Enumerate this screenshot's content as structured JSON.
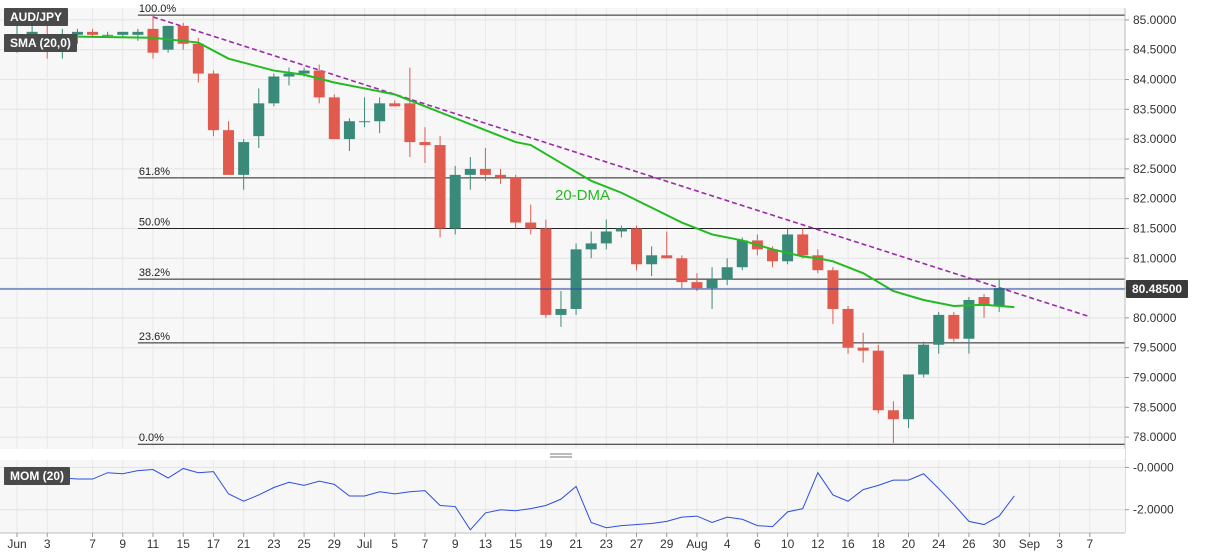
{
  "chart_data": [
    {
      "type": "candlestick",
      "symbol_label": "AUD/JPY",
      "indicator_label": "SMA (20,0)",
      "ma_annotation": "20-DMA",
      "current_price_label": "80.48500",
      "current_price": 80.485,
      "ylim": [
        77.8,
        85.2
      ],
      "y_ticks": [
        "85.0000",
        "84.5000",
        "84.0000",
        "83.5000",
        "83.0000",
        "82.5000",
        "82.0000",
        "81.5000",
        "81.0000",
        "80.5000",
        "80.0000",
        "79.5000",
        "79.0000",
        "78.5000",
        "78.0000"
      ],
      "y_tick_values": [
        85.0,
        84.5,
        84.0,
        83.5,
        83.0,
        82.5,
        82.0,
        81.5,
        81.0,
        80.5,
        80.0,
        79.5,
        79.0,
        78.5,
        78.0
      ],
      "x_ticks": [
        "Jun",
        "3",
        "7",
        "9",
        "11",
        "15",
        "17",
        "21",
        "23",
        "25",
        "29",
        "Jul",
        "5",
        "7",
        "9",
        "13",
        "15",
        "19",
        "21",
        "23",
        "27",
        "29",
        "Aug",
        "4",
        "6",
        "10",
        "12",
        "16",
        "18",
        "20",
        "24",
        "26",
        "30",
        "Sep",
        "3",
        "7"
      ],
      "x_tick_slots": [
        0,
        2,
        5,
        7,
        9,
        11,
        13,
        15,
        17,
        19,
        21,
        23,
        25,
        27,
        29,
        31,
        33,
        35,
        37,
        39,
        41,
        43,
        45,
        47,
        49,
        51,
        53,
        55,
        57,
        59,
        61,
        63,
        65,
        67,
        69,
        71
      ],
      "fibonacci": [
        {
          "label": "100.0%",
          "value": 85.08
        },
        {
          "label": "61.8%",
          "value": 82.35
        },
        {
          "label": "50.0%",
          "value": 81.5
        },
        {
          "label": "38.2%",
          "value": 80.65
        },
        {
          "label": "23.6%",
          "value": 79.58
        },
        {
          "label": "0.0%",
          "value": 77.88
        }
      ],
      "trendline": {
        "from": {
          "slot": 9,
          "value": 85.05
        },
        "to": {
          "slot": 71,
          "value": 80.02
        }
      },
      "bull_color": "#3a8a79",
      "bear_color": "#e05a4e",
      "ma_color": "#22bb22",
      "trend_color": "#9b2ba8",
      "candles": [
        {
          "slot": 0,
          "o": 84.55,
          "h": 84.9,
          "l": 84.45,
          "c": 84.75
        },
        {
          "slot": 1,
          "o": 84.75,
          "h": 84.9,
          "l": 84.6,
          "c": 84.8
        },
        {
          "slot": 2,
          "o": 84.75,
          "h": 84.9,
          "l": 84.35,
          "c": 84.55
        },
        {
          "slot": 3,
          "o": 84.55,
          "h": 84.85,
          "l": 84.35,
          "c": 84.75
        },
        {
          "slot": 4,
          "o": 84.75,
          "h": 84.85,
          "l": 84.6,
          "c": 84.8
        },
        {
          "slot": 5,
          "o": 84.8,
          "h": 84.85,
          "l": 84.7,
          "c": 84.75
        },
        {
          "slot": 6,
          "o": 84.75,
          "h": 84.8,
          "l": 84.7,
          "c": 84.75
        },
        {
          "slot": 7,
          "o": 84.75,
          "h": 84.8,
          "l": 84.7,
          "c": 84.8
        },
        {
          "slot": 8,
          "o": 84.75,
          "h": 84.85,
          "l": 84.65,
          "c": 84.8
        },
        {
          "slot": 9,
          "o": 84.85,
          "h": 85.08,
          "l": 84.35,
          "c": 84.45
        },
        {
          "slot": 10,
          "o": 84.5,
          "h": 84.9,
          "l": 84.45,
          "c": 84.9
        },
        {
          "slot": 11,
          "o": 84.9,
          "h": 84.95,
          "l": 84.5,
          "c": 84.6
        },
        {
          "slot": 12,
          "o": 84.6,
          "h": 84.7,
          "l": 83.95,
          "c": 84.1
        },
        {
          "slot": 13,
          "o": 84.1,
          "h": 84.15,
          "l": 83.05,
          "c": 83.15
        },
        {
          "slot": 14,
          "o": 83.15,
          "h": 83.3,
          "l": 82.4,
          "c": 82.4
        },
        {
          "slot": 15,
          "o": 82.4,
          "h": 83.0,
          "l": 82.15,
          "c": 82.95
        },
        {
          "slot": 16,
          "o": 83.05,
          "h": 83.85,
          "l": 82.85,
          "c": 83.6
        },
        {
          "slot": 17,
          "o": 83.6,
          "h": 84.1,
          "l": 83.55,
          "c": 84.05
        },
        {
          "slot": 18,
          "o": 84.05,
          "h": 84.2,
          "l": 83.9,
          "c": 84.1
        },
        {
          "slot": 19,
          "o": 84.1,
          "h": 84.2,
          "l": 84.05,
          "c": 84.15
        },
        {
          "slot": 20,
          "o": 84.15,
          "h": 84.25,
          "l": 83.6,
          "c": 83.7
        },
        {
          "slot": 21,
          "o": 83.7,
          "h": 83.75,
          "l": 83.0,
          "c": 83.0
        },
        {
          "slot": 22,
          "o": 83.0,
          "h": 83.35,
          "l": 82.8,
          "c": 83.3
        },
        {
          "slot": 23,
          "o": 83.3,
          "h": 83.7,
          "l": 83.2,
          "c": 83.3
        },
        {
          "slot": 24,
          "o": 83.3,
          "h": 83.7,
          "l": 83.1,
          "c": 83.6
        },
        {
          "slot": 25,
          "o": 83.6,
          "h": 83.65,
          "l": 83.55,
          "c": 83.55
        },
        {
          "slot": 26,
          "o": 83.6,
          "h": 84.2,
          "l": 82.7,
          "c": 82.95
        },
        {
          "slot": 27,
          "o": 82.95,
          "h": 83.2,
          "l": 82.6,
          "c": 82.9
        },
        {
          "slot": 28,
          "o": 82.9,
          "h": 83.05,
          "l": 81.35,
          "c": 81.5
        },
        {
          "slot": 29,
          "o": 81.5,
          "h": 82.55,
          "l": 81.4,
          "c": 82.4
        },
        {
          "slot": 30,
          "o": 82.4,
          "h": 82.7,
          "l": 82.15,
          "c": 82.5
        },
        {
          "slot": 31,
          "o": 82.5,
          "h": 82.85,
          "l": 82.3,
          "c": 82.4
        },
        {
          "slot": 32,
          "o": 82.4,
          "h": 82.5,
          "l": 82.25,
          "c": 82.35
        },
        {
          "slot": 33,
          "o": 82.35,
          "h": 82.4,
          "l": 81.5,
          "c": 81.6
        },
        {
          "slot": 34,
          "o": 81.6,
          "h": 81.9,
          "l": 81.4,
          "c": 81.5
        },
        {
          "slot": 35,
          "o": 81.5,
          "h": 81.65,
          "l": 80.0,
          "c": 80.05
        },
        {
          "slot": 36,
          "o": 80.05,
          "h": 80.45,
          "l": 79.85,
          "c": 80.15
        },
        {
          "slot": 37,
          "o": 80.15,
          "h": 81.25,
          "l": 80.05,
          "c": 81.15
        },
        {
          "slot": 38,
          "o": 81.15,
          "h": 81.45,
          "l": 81.0,
          "c": 81.25
        },
        {
          "slot": 39,
          "o": 81.25,
          "h": 81.65,
          "l": 81.15,
          "c": 81.45
        },
        {
          "slot": 40,
          "o": 81.45,
          "h": 81.55,
          "l": 81.35,
          "c": 81.5
        },
        {
          "slot": 41,
          "o": 81.5,
          "h": 81.55,
          "l": 80.8,
          "c": 80.9
        },
        {
          "slot": 42,
          "o": 80.9,
          "h": 81.2,
          "l": 80.7,
          "c": 81.05
        },
        {
          "slot": 43,
          "o": 81.05,
          "h": 81.45,
          "l": 81.0,
          "c": 81.0
        },
        {
          "slot": 44,
          "o": 81.0,
          "h": 81.05,
          "l": 80.5,
          "c": 80.6
        },
        {
          "slot": 45,
          "o": 80.6,
          "h": 80.75,
          "l": 80.45,
          "c": 80.5
        },
        {
          "slot": 46,
          "o": 80.5,
          "h": 80.85,
          "l": 80.15,
          "c": 80.65
        },
        {
          "slot": 47,
          "o": 80.65,
          "h": 81.0,
          "l": 80.55,
          "c": 80.85
        },
        {
          "slot": 48,
          "o": 80.85,
          "h": 81.35,
          "l": 80.8,
          "c": 81.3
        },
        {
          "slot": 49,
          "o": 81.3,
          "h": 81.4,
          "l": 81.05,
          "c": 81.15
        },
        {
          "slot": 50,
          "o": 81.15,
          "h": 81.2,
          "l": 80.85,
          "c": 80.95
        },
        {
          "slot": 51,
          "o": 80.95,
          "h": 81.5,
          "l": 80.9,
          "c": 81.4
        },
        {
          "slot": 52,
          "o": 81.4,
          "h": 81.5,
          "l": 81.0,
          "c": 81.05
        },
        {
          "slot": 53,
          "o": 81.05,
          "h": 81.15,
          "l": 80.75,
          "c": 80.8
        },
        {
          "slot": 54,
          "o": 80.8,
          "h": 80.85,
          "l": 79.9,
          "c": 80.15
        },
        {
          "slot": 55,
          "o": 80.15,
          "h": 80.2,
          "l": 79.4,
          "c": 79.5
        },
        {
          "slot": 56,
          "o": 79.5,
          "h": 79.75,
          "l": 79.25,
          "c": 79.45
        },
        {
          "slot": 57,
          "o": 79.45,
          "h": 79.55,
          "l": 78.4,
          "c": 78.45
        },
        {
          "slot": 58,
          "o": 78.45,
          "h": 78.6,
          "l": 77.9,
          "c": 78.3
        },
        {
          "slot": 59,
          "o": 78.3,
          "h": 79.05,
          "l": 78.15,
          "c": 79.05
        },
        {
          "slot": 60,
          "o": 79.05,
          "h": 79.6,
          "l": 79.0,
          "c": 79.55
        },
        {
          "slot": 61,
          "o": 79.55,
          "h": 80.1,
          "l": 79.4,
          "c": 80.05
        },
        {
          "slot": 62,
          "o": 80.05,
          "h": 80.1,
          "l": 79.6,
          "c": 79.65
        },
        {
          "slot": 63,
          "o": 79.65,
          "h": 80.35,
          "l": 79.4,
          "c": 80.3
        },
        {
          "slot": 64,
          "o": 80.35,
          "h": 80.4,
          "l": 80.0,
          "c": 80.2
        },
        {
          "slot": 65,
          "o": 80.2,
          "h": 80.65,
          "l": 80.1,
          "c": 80.5
        }
      ],
      "sma": [
        {
          "slot": 0,
          "v": 84.72
        },
        {
          "slot": 4,
          "v": 84.72
        },
        {
          "slot": 9,
          "v": 84.7
        },
        {
          "slot": 12,
          "v": 84.62
        },
        {
          "slot": 14,
          "v": 84.35
        },
        {
          "slot": 17,
          "v": 84.15
        },
        {
          "slot": 19,
          "v": 84.08
        },
        {
          "slot": 21,
          "v": 83.95
        },
        {
          "slot": 23,
          "v": 83.85
        },
        {
          "slot": 25,
          "v": 83.75
        },
        {
          "slot": 27,
          "v": 83.55
        },
        {
          "slot": 29,
          "v": 83.35
        },
        {
          "slot": 31,
          "v": 83.15
        },
        {
          "slot": 33,
          "v": 82.95
        },
        {
          "slot": 34,
          "v": 82.9
        },
        {
          "slot": 36,
          "v": 82.6
        },
        {
          "slot": 38,
          "v": 82.3
        },
        {
          "slot": 40,
          "v": 82.1
        },
        {
          "slot": 42,
          "v": 81.85
        },
        {
          "slot": 44,
          "v": 81.6
        },
        {
          "slot": 46,
          "v": 81.4
        },
        {
          "slot": 48,
          "v": 81.3
        },
        {
          "slot": 50,
          "v": 81.15
        },
        {
          "slot": 52,
          "v": 81.03
        },
        {
          "slot": 53,
          "v": 81.0
        },
        {
          "slot": 54,
          "v": 80.95
        },
        {
          "slot": 56,
          "v": 80.75
        },
        {
          "slot": 58,
          "v": 80.45
        },
        {
          "slot": 60,
          "v": 80.3
        },
        {
          "slot": 62,
          "v": 80.2
        },
        {
          "slot": 64,
          "v": 80.22
        },
        {
          "slot": 66,
          "v": 80.18
        }
      ]
    },
    {
      "type": "line",
      "label": "MOM (20)",
      "ylim": [
        -3.1,
        0.35
      ],
      "y_ticks": [
        "-0.0000",
        "-2.0000"
      ],
      "y_tick_values": [
        0.0,
        -2.0
      ],
      "line_color": "#2e4ee0",
      "x_slots": [
        0,
        1,
        2,
        3,
        4,
        5,
        6,
        7,
        8,
        9,
        10,
        11,
        12,
        13,
        14,
        15,
        16,
        17,
        18,
        19,
        20,
        21,
        22,
        23,
        24,
        25,
        26,
        27,
        28,
        29,
        30,
        31,
        32,
        33,
        34,
        35,
        36,
        37,
        38,
        39,
        40,
        41,
        42,
        43,
        44,
        45,
        46,
        47,
        48,
        49,
        50,
        51,
        52,
        53,
        54,
        55,
        56,
        57,
        58,
        59,
        60,
        61,
        62,
        63,
        64,
        65,
        66
      ],
      "values": [
        -0.5,
        -0.5,
        -0.5,
        -0.5,
        -0.55,
        -0.55,
        -0.25,
        -0.3,
        -0.15,
        -0.1,
        -0.5,
        -0.05,
        -0.25,
        -0.2,
        -1.25,
        -1.6,
        -1.3,
        -0.95,
        -0.7,
        -0.85,
        -0.65,
        -0.8,
        -1.35,
        -1.35,
        -1.15,
        -1.25,
        -1.15,
        -1.1,
        -1.8,
        -1.85,
        -2.95,
        -2.15,
        -2.0,
        -2.05,
        -1.95,
        -1.8,
        -1.5,
        -0.9,
        -2.6,
        -2.85,
        -2.75,
        -2.7,
        -2.65,
        -2.55,
        -2.35,
        -2.3,
        -2.6,
        -2.35,
        -2.45,
        -2.75,
        -2.8,
        -2.1,
        -1.95,
        -0.25,
        -1.3,
        -1.6,
        -1.05,
        -0.85,
        -0.6,
        -0.6,
        -0.3,
        -1.0,
        -1.75,
        -2.55,
        -2.7,
        -2.3,
        -1.35
      ]
    }
  ]
}
